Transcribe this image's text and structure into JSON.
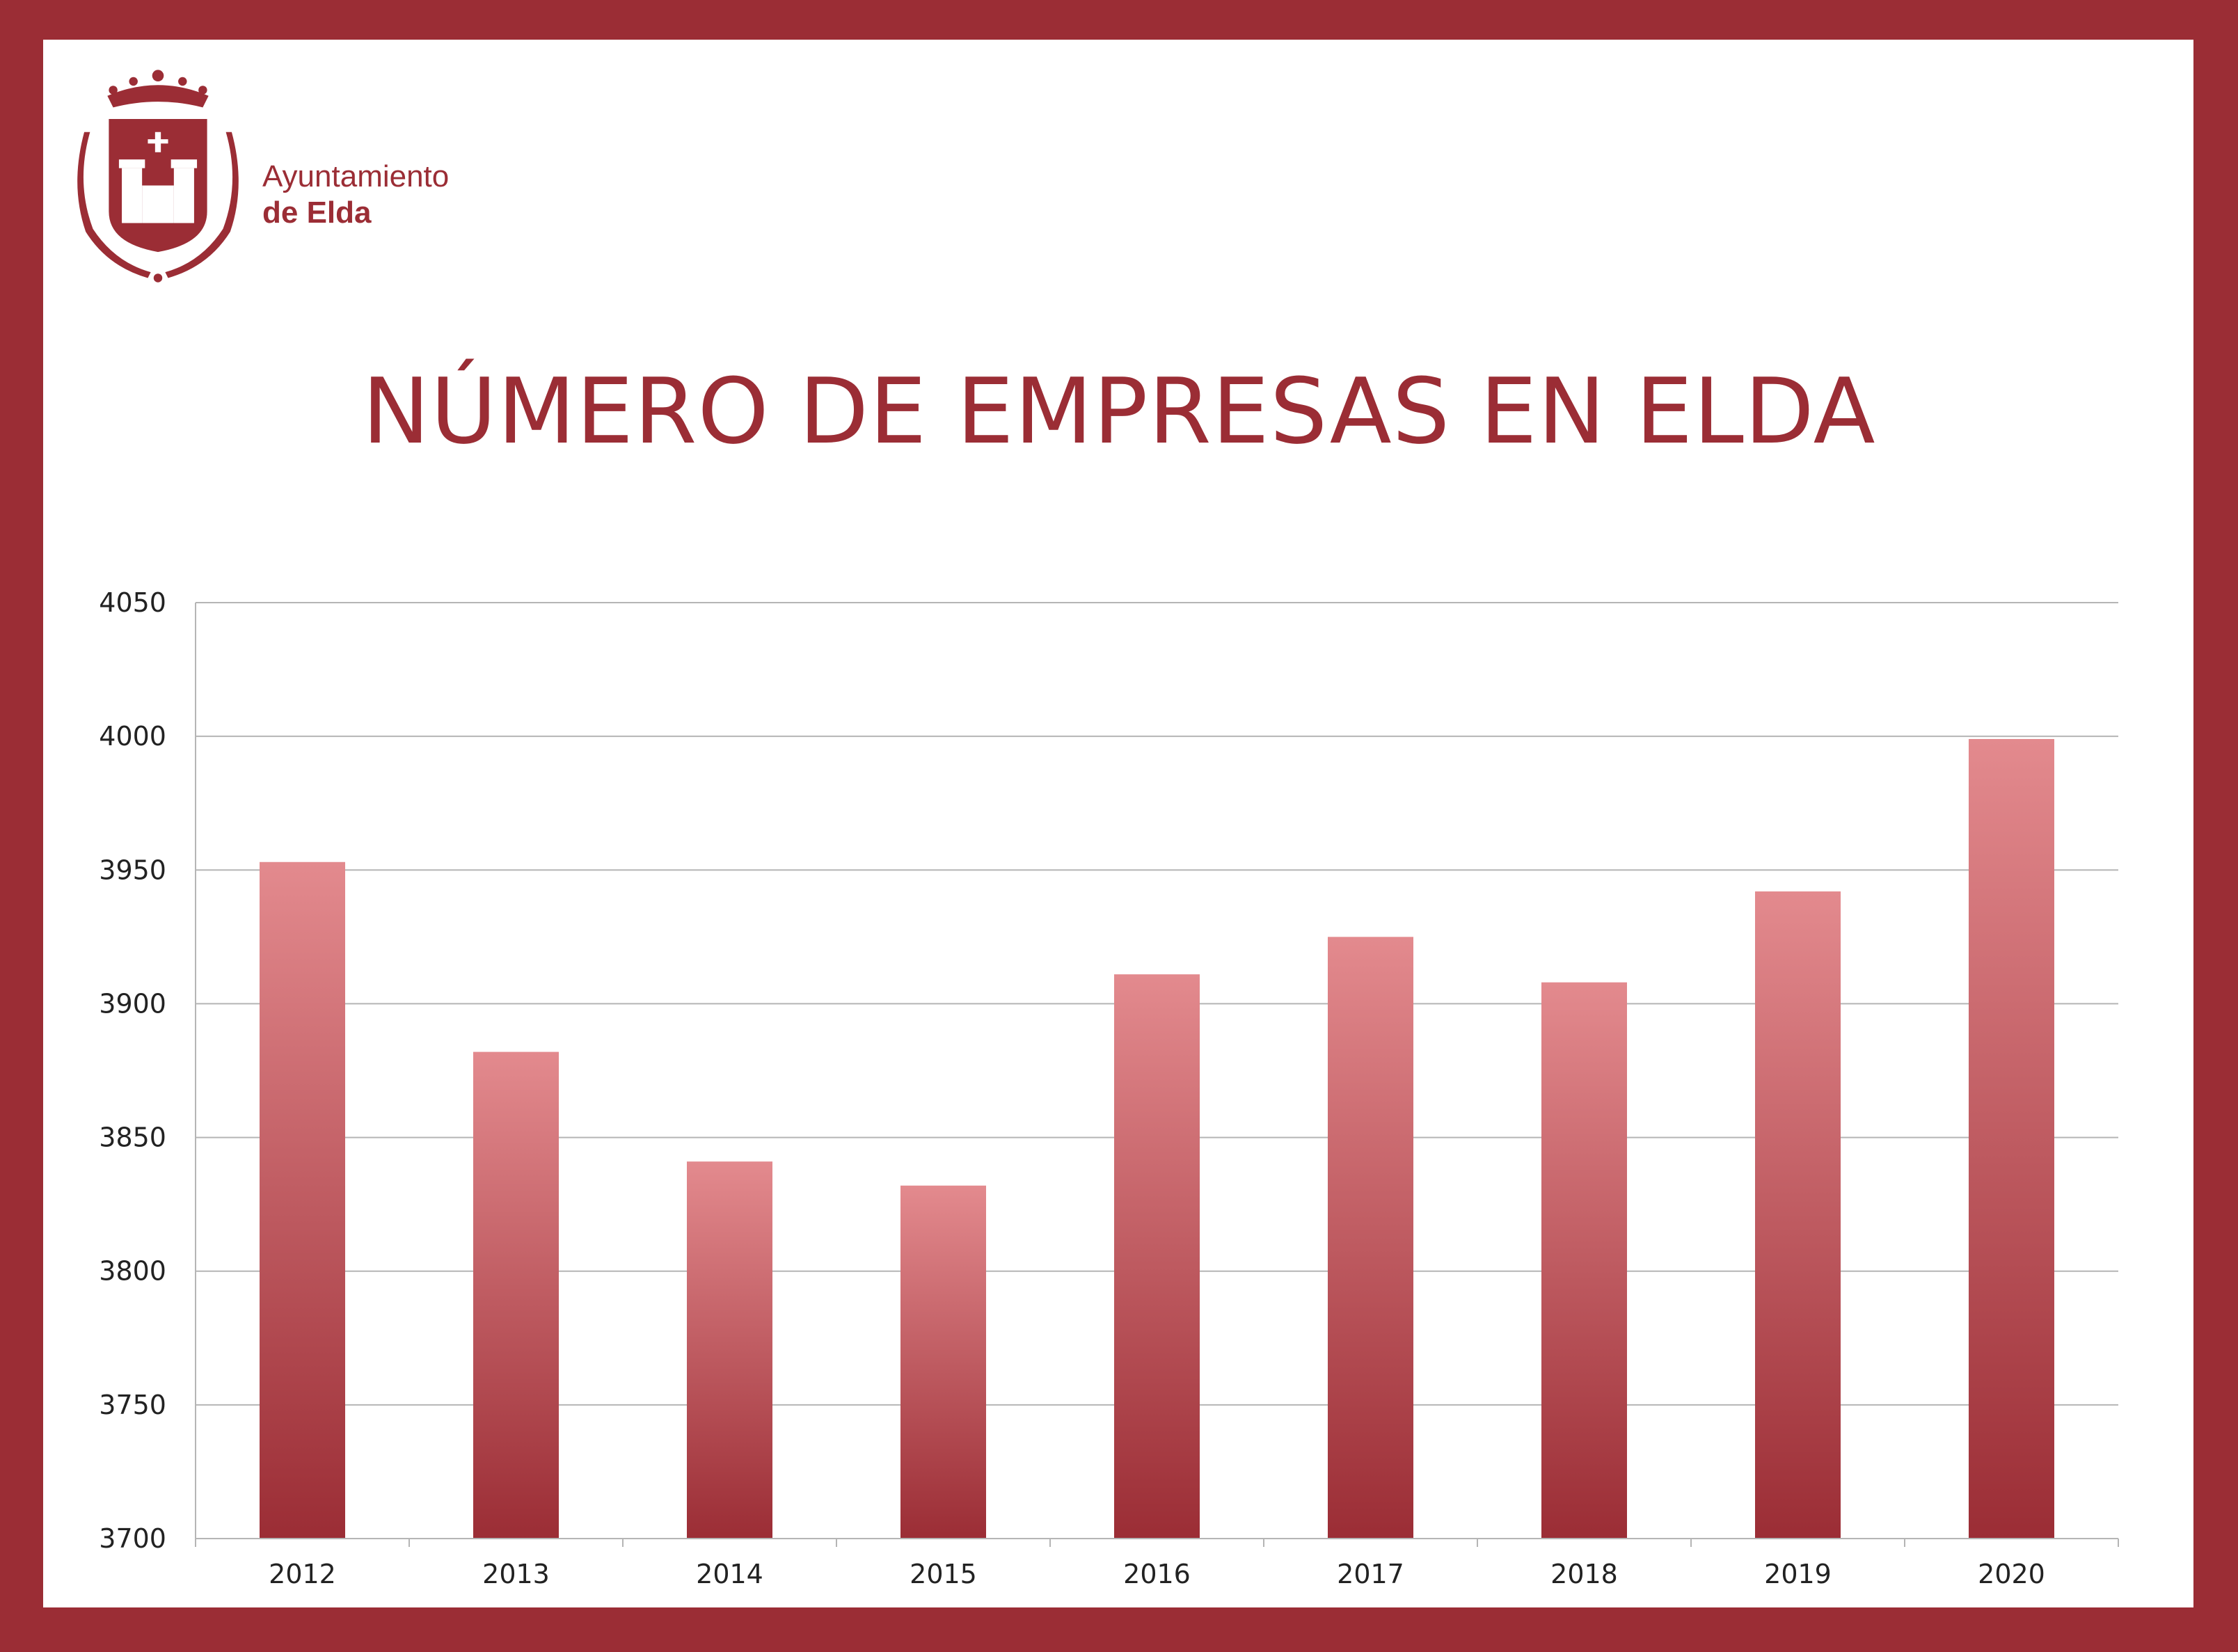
{
  "logo": {
    "line1": "Ayuntamiento",
    "line2": "de Elda"
  },
  "colors": {
    "frame": "#9b2d35",
    "bar_top": "#e38a8e",
    "bar_bottom": "#9b2d35",
    "grid": "#b5b5b5"
  },
  "chart_data": {
    "type": "bar",
    "title": "NÚMERO DE EMPRESAS EN ELDA",
    "xlabel": "",
    "ylabel": "",
    "categories": [
      "2012",
      "2013",
      "2014",
      "2015",
      "2016",
      "2017",
      "2018",
      "2019",
      "2020"
    ],
    "values": [
      3953,
      3882,
      3841,
      3832,
      3911,
      3925,
      3908,
      3942,
      3999
    ],
    "ylim": [
      3700,
      4050
    ],
    "yticks": [
      "3700",
      "3750",
      "3800",
      "3850",
      "3900",
      "3950",
      "4000",
      "4050"
    ],
    "grid": true,
    "legend": "none"
  }
}
